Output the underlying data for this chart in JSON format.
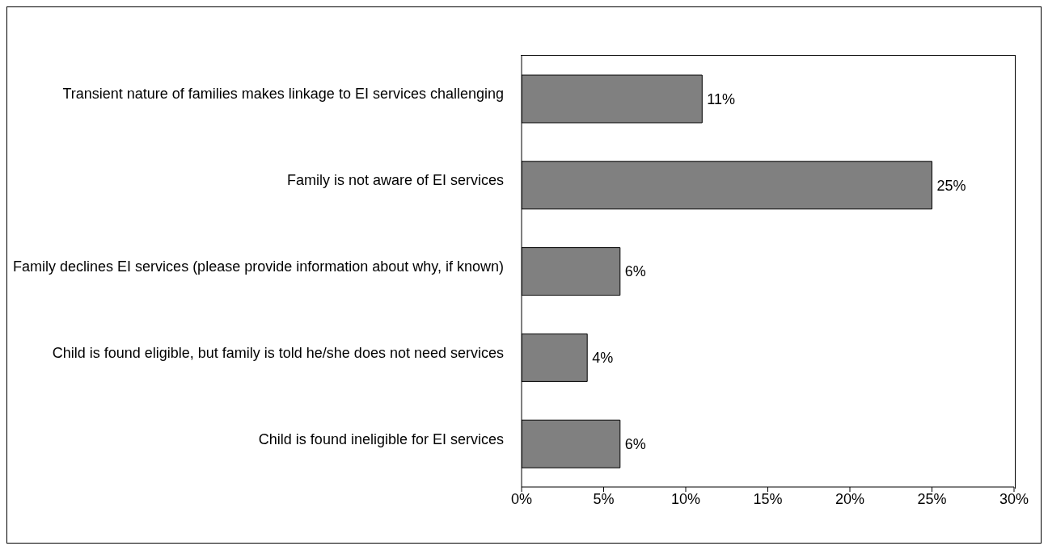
{
  "chart_data": {
    "type": "bar",
    "orientation": "horizontal",
    "categories": [
      "Transient nature of families makes linkage to EI services challenging",
      "Family is not aware of EI services",
      "Family declines EI services (please provide information about why, if known)",
      "Child is found eligible, but family is told he/she does not need services",
      "Child is found ineligible for EI services"
    ],
    "values": [
      11,
      25,
      6,
      4,
      6
    ],
    "value_labels": [
      "11%",
      "25%",
      "6%",
      "4%",
      "6%"
    ],
    "color": "#808080",
    "xlim": [
      0,
      30
    ],
    "xticks": [
      {
        "value": 0,
        "label": "0%"
      },
      {
        "value": 5,
        "label": "5%"
      },
      {
        "value": 10,
        "label": "10%"
      },
      {
        "value": 15,
        "label": "15%"
      },
      {
        "value": 20,
        "label": "20%"
      },
      {
        "value": 25,
        "label": "25%"
      },
      {
        "value": 30,
        "label": "30%"
      }
    ],
    "grid": false,
    "legend": false
  }
}
